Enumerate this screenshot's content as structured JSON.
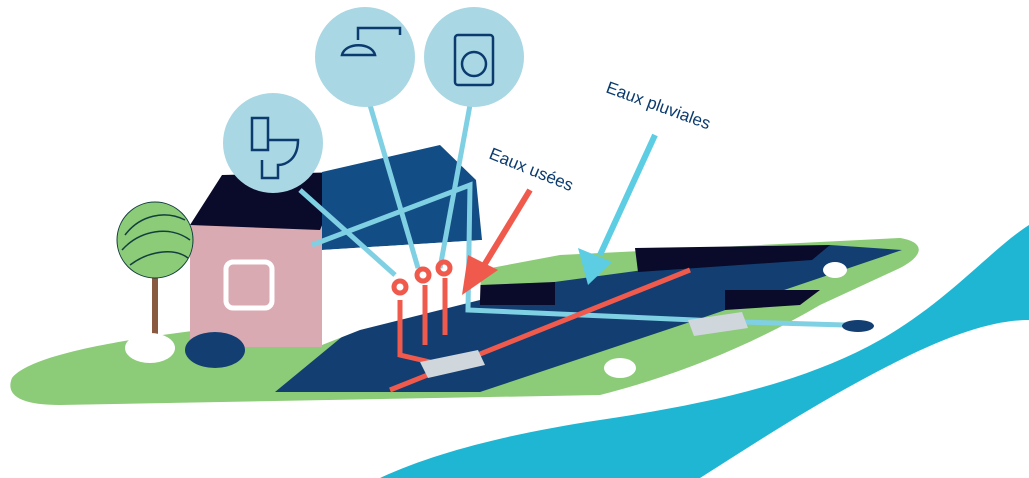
{
  "labels": {
    "wastewater": "Eaux usées",
    "stormwater": "Eaux pluviales"
  }
}
